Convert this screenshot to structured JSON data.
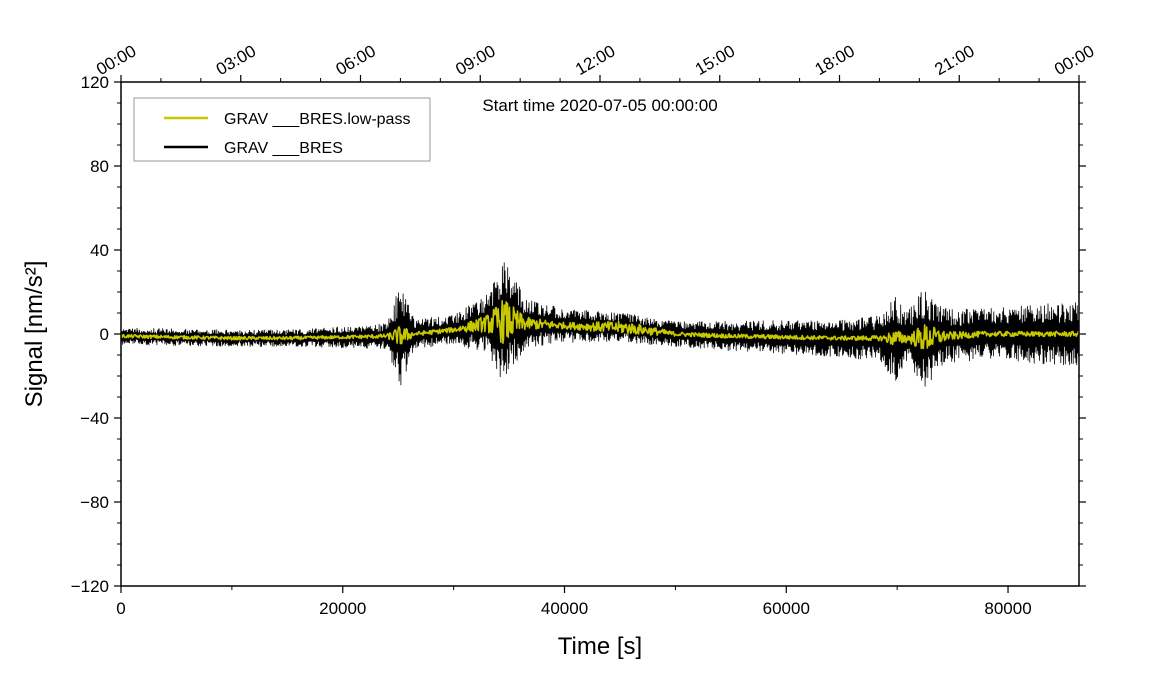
{
  "chart_data": {
    "type": "line",
    "xlabel": "Time [s]",
    "ylabel": "Signal [nm/s²]",
    "xlim": [
      0,
      86400
    ],
    "ylim": [
      -120,
      120
    ],
    "x_ticks": [
      0,
      20000,
      40000,
      60000,
      80000
    ],
    "x_tick_labels": [
      "0",
      "20000",
      "40000",
      "60000",
      "80000"
    ],
    "y_ticks": [
      -120,
      -80,
      -40,
      0,
      40,
      80,
      120
    ],
    "y_tick_labels": [
      "−120",
      "−80",
      "−40",
      "0",
      "40",
      "80",
      "120"
    ],
    "top_axis_ticks": [
      0,
      10800,
      21600,
      32400,
      43200,
      54000,
      64800,
      75600,
      86400
    ],
    "top_axis_labels": [
      "00:00",
      "03:00",
      "06:00",
      "09:00",
      "12:00",
      "15:00",
      "18:00",
      "21:00",
      "00:00"
    ],
    "annotation": "Start time 2020-07-05 00:00:00",
    "legend_position": "top-left",
    "grid": false,
    "series": [
      {
        "name": "GRAV ___BRES",
        "color": "#000000",
        "style": "raw-noise-envelope",
        "x": [
          0,
          5000,
          10000,
          15000,
          20000,
          24000,
          25200,
          26500,
          30000,
          33000,
          34500,
          36500,
          40000,
          45500,
          50000,
          55000,
          60000,
          65000,
          68500,
          69800,
          71000,
          72500,
          74500,
          78000,
          82000,
          86400
        ],
        "center": [
          -1,
          -1.5,
          -2,
          -2,
          -1.5,
          -1,
          -1,
          0,
          2,
          5,
          6,
          5,
          4,
          3,
          0,
          -1,
          -1.5,
          -2,
          -2,
          -2,
          -2,
          -2,
          -1,
          0,
          0,
          0
        ],
        "amplitude": [
          4,
          4,
          4,
          4,
          5,
          6,
          26,
          7,
          7,
          14,
          30,
          12,
          8,
          7,
          6,
          7,
          8,
          9,
          11,
          21,
          13,
          25,
          13,
          12,
          14,
          15
        ]
      },
      {
        "name": "GRAV ___BRES.low-pass",
        "color": "#c8c800",
        "style": "filtered",
        "x": [
          0,
          5000,
          10000,
          15000,
          20000,
          24000,
          25200,
          26500,
          30000,
          33000,
          34500,
          36500,
          40000,
          45500,
          50000,
          55000,
          60000,
          65000,
          68500,
          69800,
          71000,
          72500,
          74500,
          78000,
          82000,
          86400
        ],
        "center": [
          -1,
          -1.5,
          -2,
          -2,
          -1.5,
          -1,
          -1,
          0,
          2,
          5,
          6,
          5,
          4,
          3,
          0,
          -1,
          -1.5,
          -2,
          -2,
          -2,
          -2,
          -2,
          -1,
          0,
          0,
          0
        ],
        "amplitude": [
          0.8,
          0.8,
          0.8,
          0.8,
          0.8,
          1,
          5,
          1,
          1.2,
          4,
          11,
          3,
          1.5,
          3,
          1,
          1,
          1,
          1,
          1.2,
          4,
          2,
          7,
          2,
          1.2,
          1.2,
          1.2
        ]
      }
    ]
  }
}
